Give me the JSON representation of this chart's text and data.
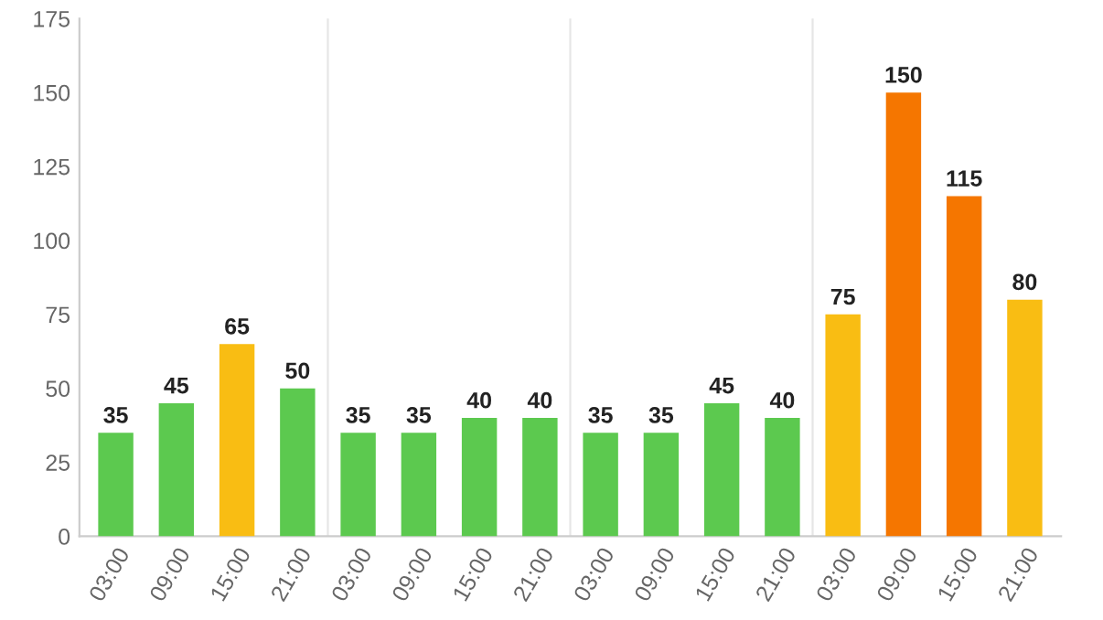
{
  "chart_data": {
    "type": "bar",
    "categories": [
      "03:00",
      "09:00",
      "15:00",
      "21:00",
      "03:00",
      "09:00",
      "15:00",
      "21:00",
      "03:00",
      "09:00",
      "15:00",
      "21:00",
      "03:00",
      "09:00",
      "15:00",
      "21:00"
    ],
    "values": [
      35,
      45,
      65,
      50,
      35,
      35,
      40,
      40,
      35,
      35,
      45,
      40,
      75,
      150,
      115,
      80
    ],
    "colors": [
      "#5cc94f",
      "#5cc94f",
      "#f9bd13",
      "#5cc94f",
      "#5cc94f",
      "#5cc94f",
      "#5cc94f",
      "#5cc94f",
      "#5cc94f",
      "#5cc94f",
      "#5cc94f",
      "#5cc94f",
      "#f9bd13",
      "#f57600",
      "#f57600",
      "#f9bd13"
    ],
    "ylim": [
      0,
      175
    ],
    "yticks": [
      0,
      25,
      50,
      75,
      100,
      125,
      150,
      175
    ],
    "data_labels": true,
    "grid": false,
    "legend": false
  }
}
